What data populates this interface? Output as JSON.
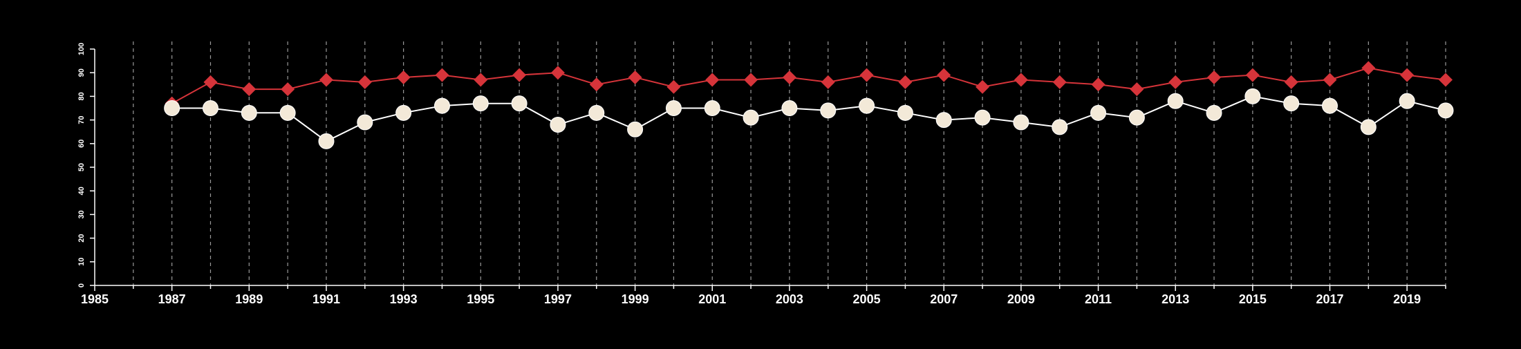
{
  "chart_data": {
    "type": "line",
    "title": "",
    "xlabel": "",
    "ylabel": "",
    "xlim": [
      1985,
      2020
    ],
    "ylim": [
      0,
      100
    ],
    "x_ticks": [
      1985,
      1987,
      1989,
      1991,
      1993,
      1995,
      1997,
      1999,
      2001,
      2003,
      2005,
      2007,
      2009,
      2011,
      2013,
      2015,
      2017,
      2019
    ],
    "y_ticks": [
      0,
      10,
      20,
      30,
      40,
      50,
      60,
      70,
      80,
      90,
      100
    ],
    "vertical_gridlines": "dashed, every year from 1986 to 2020",
    "background_color": "#000000",
    "axis_color": "#ffffff",
    "x": [
      1987,
      1988,
      1989,
      1990,
      1991,
      1992,
      1993,
      1994,
      1995,
      1996,
      1997,
      1998,
      1999,
      2000,
      2001,
      2002,
      2003,
      2004,
      2005,
      2006,
      2007,
      2008,
      2009,
      2010,
      2011,
      2012,
      2013,
      2014,
      2015,
      2016,
      2017,
      2018,
      2019,
      2020
    ],
    "series": [
      {
        "marker": "diamond",
        "color": "#d6343a",
        "values": [
          77,
          86,
          83,
          83,
          87,
          86,
          88,
          89,
          87,
          89,
          90,
          85,
          88,
          84,
          87,
          87,
          88,
          86,
          89,
          86,
          89,
          84,
          87,
          86,
          85,
          83,
          86,
          88,
          89,
          86,
          87,
          92,
          89,
          87
        ]
      },
      {
        "marker": "circle",
        "color": "#f3e9d8",
        "line_color": "#ffffff",
        "values": [
          75,
          75,
          73,
          73,
          61,
          69,
          73,
          76,
          77,
          77,
          68,
          73,
          66,
          75,
          75,
          71,
          75,
          74,
          76,
          73,
          70,
          71,
          69,
          67,
          73,
          71,
          78,
          73,
          80,
          77,
          76,
          67,
          78,
          74
        ]
      }
    ]
  }
}
